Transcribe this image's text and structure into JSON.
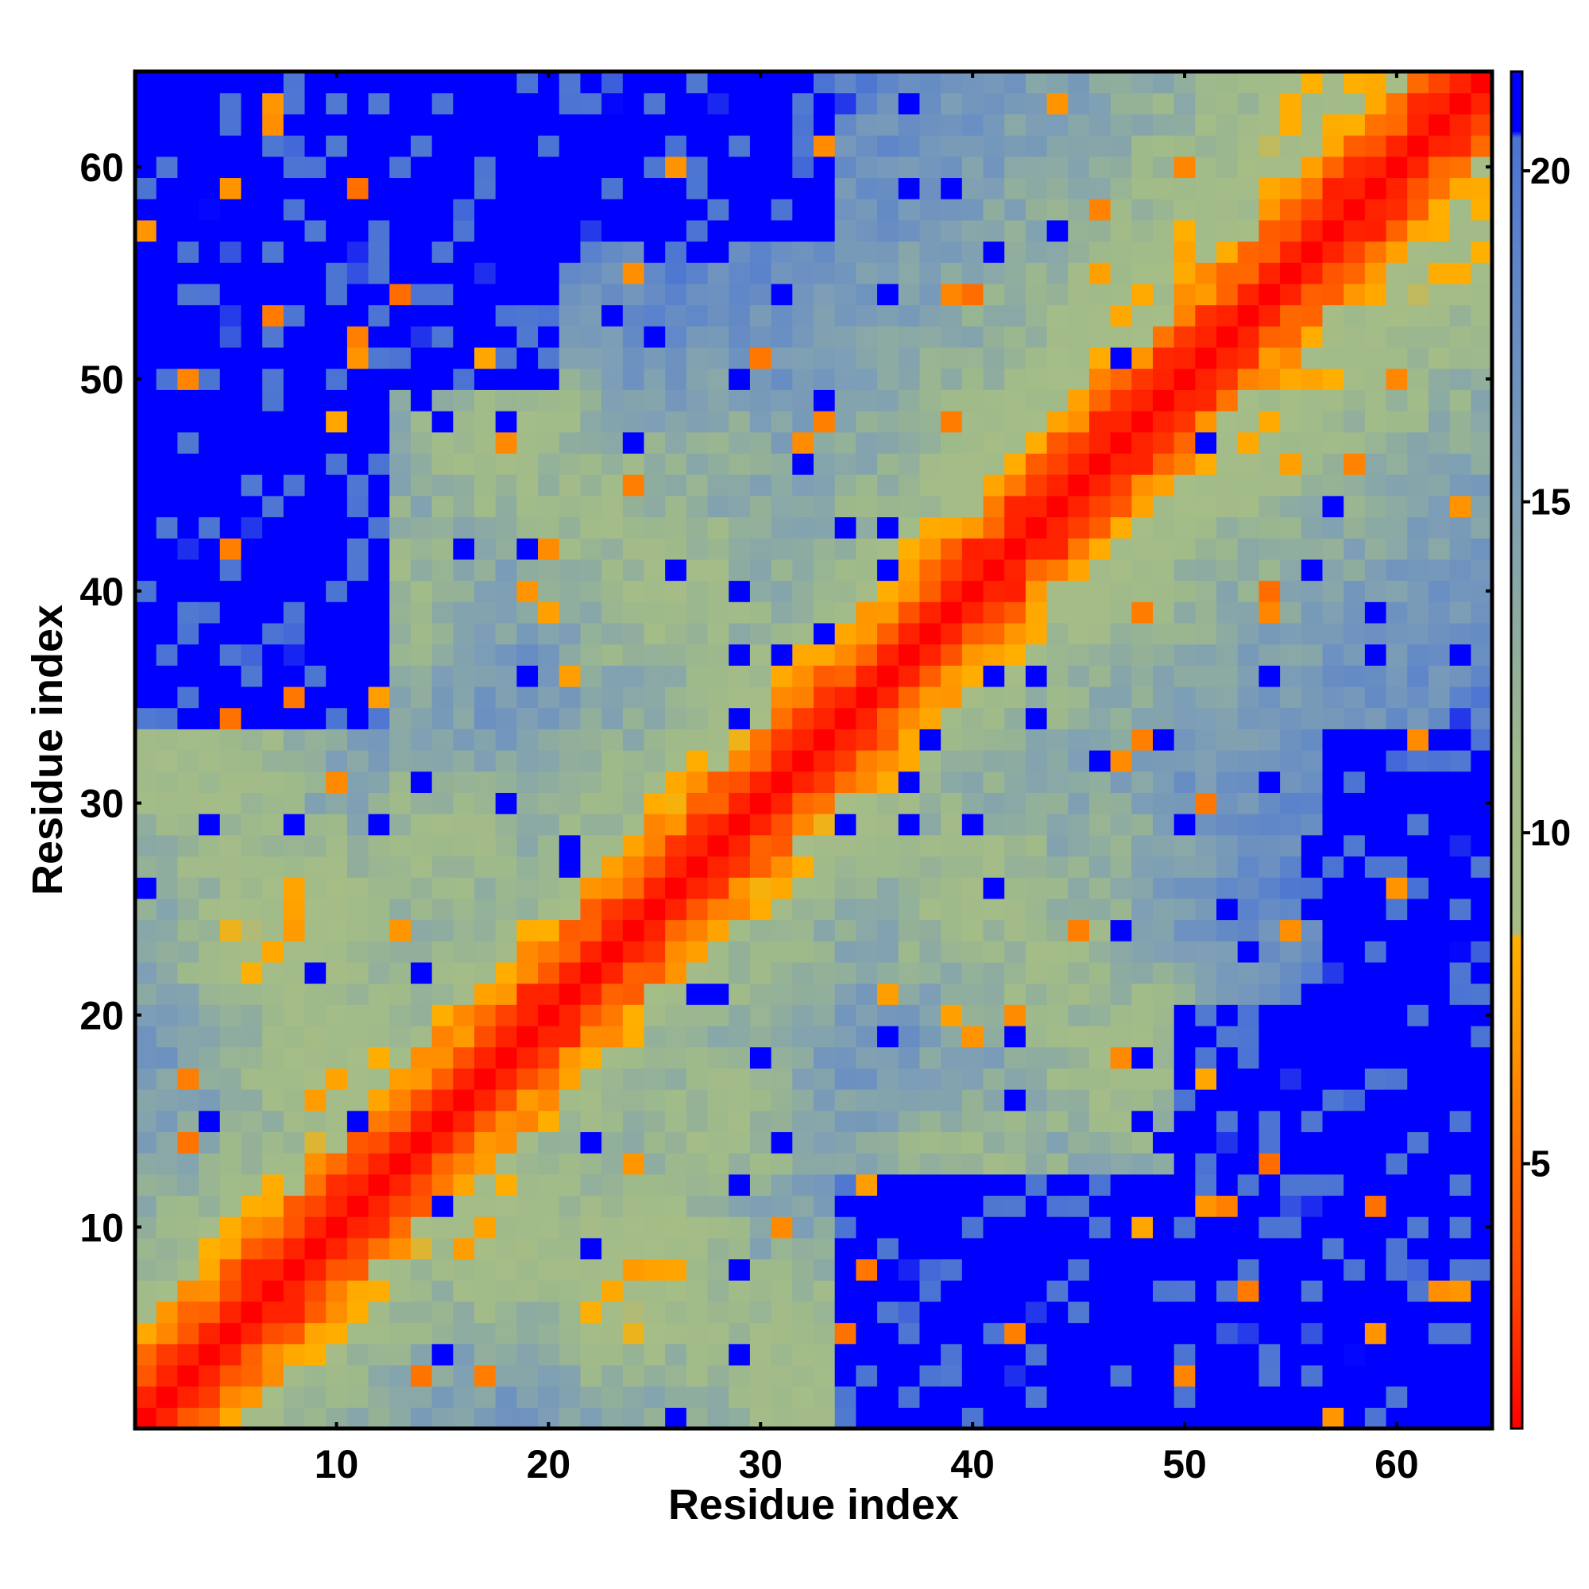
{
  "chart_data": {
    "type": "heatmap",
    "title": "",
    "xlabel": "Residue index",
    "ylabel": "Residue index",
    "n": 64,
    "xlim": [
      0.5,
      64.5
    ],
    "ylim": [
      0.5,
      64.5
    ],
    "xticks": [
      10,
      20,
      30,
      40,
      50,
      60
    ],
    "yticks": [
      10,
      20,
      30,
      40,
      50,
      60
    ],
    "grid": false,
    "colorbar": {
      "range": [
        1,
        21.5
      ],
      "ticks": [
        5,
        10,
        15,
        20
      ],
      "stops": [
        {
          "value": 1.0,
          "color": "#ff0000"
        },
        {
          "value": 3.0,
          "color": "#ff4400"
        },
        {
          "value": 5.0,
          "color": "#ff6a00"
        },
        {
          "value": 7.0,
          "color": "#ff9900"
        },
        {
          "value": 8.4,
          "color": "#ffb000"
        },
        {
          "value": 8.5,
          "color": "#a6bd86"
        },
        {
          "value": 11.0,
          "color": "#9fba8a"
        },
        {
          "value": 15.0,
          "color": "#7e9fb5"
        },
        {
          "value": 19.0,
          "color": "#5a82cc"
        },
        {
          "value": 20.5,
          "color": "#4a73d4"
        },
        {
          "value": 20.6,
          "color": "#0000ff"
        },
        {
          "value": 21.5,
          "color": "#0000ff"
        }
      ]
    },
    "description": "Symmetric residue-residue distance map (64 x 64); red diagonal = nearest contacts, orange = close contacts, green/grey-blue = medium distances, saturated blue = distances beyond the map cutoff.",
    "structure": {
      "diagonal_profile": [
        {
          "offset": 0,
          "value": 1.0
        },
        {
          "offset": 1,
          "value": 2.0
        },
        {
          "offset": 2,
          "value": 3.5
        },
        {
          "offset": 3,
          "value": 5.5
        },
        {
          "offset": 4,
          "value": 7.5
        },
        {
          "offset": 5,
          "value": 9.5
        },
        {
          "offset": 6,
          "value": 11.0
        },
        {
          "offset": 10,
          "value": 13.0
        },
        {
          "offset": 16,
          "value": 15.5
        },
        {
          "offset": 22,
          "value": 17.5
        },
        {
          "offset": 28,
          "value": 19.0
        }
      ],
      "contact_blobs": [
        {
          "i": 3,
          "j": 33,
          "value": 9.5,
          "spread": 6
        },
        {
          "i": 5,
          "j": 42,
          "value": 10.5,
          "spread": 6
        },
        {
          "i": 8,
          "j": 24,
          "value": 8.5,
          "spread": 5
        },
        {
          "i": 10,
          "j": 18,
          "value": 9.0,
          "spread": 5
        },
        {
          "i": 18,
          "j": 47,
          "value": 10.0,
          "spread": 5
        },
        {
          "i": 22,
          "j": 44,
          "value": 10.5,
          "spread": 5
        },
        {
          "i": 26,
          "j": 40,
          "value": 10.0,
          "spread": 5
        },
        {
          "i": 12,
          "j": 40,
          "value": 11.0,
          "spread": 6
        },
        {
          "i": 15,
          "j": 28,
          "value": 10.5,
          "spread": 5
        },
        {
          "i": 5,
          "j": 28,
          "value": 11.0,
          "spread": 6
        },
        {
          "i": 7,
          "j": 48,
          "value": 12.0,
          "spread": 5
        },
        {
          "i": 28,
          "j": 46,
          "value": 12.5,
          "spread": 5
        }
      ],
      "far_regions": [
        {
          "i": [
            14,
            20
          ],
          "j": [
            31,
            39
          ],
          "value": 21.5
        },
        {
          "i": [
            34,
            64
          ],
          "j": [
            1,
            12
          ],
          "value": 21.5
        },
        {
          "i": [
            50,
            64
          ],
          "j": [
            1,
            20
          ],
          "value": 21.5
        },
        {
          "i": [
            40,
            64
          ],
          "j": [
            1,
            6
          ],
          "value": 21.5
        },
        {
          "i": [
            57,
            64
          ],
          "j": [
            20,
            33
          ],
          "value": 21.5
        }
      ]
    }
  }
}
